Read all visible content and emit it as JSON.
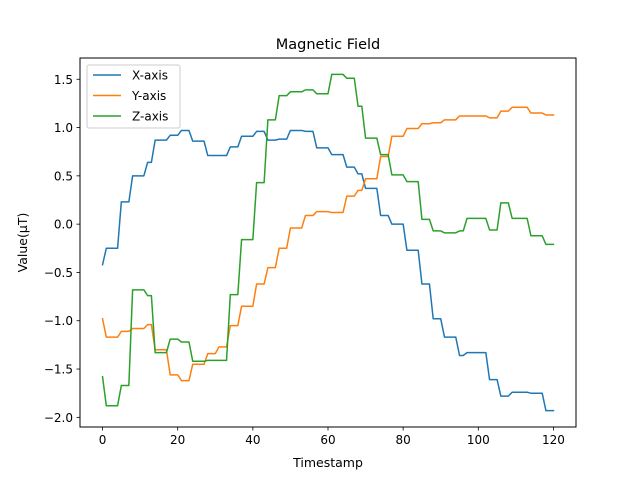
{
  "chart_data": {
    "type": "line",
    "title": "Magnetic Field",
    "xlabel": "Timestamp",
    "ylabel": "Value(µT)",
    "xlim": [
      -6,
      126
    ],
    "ylim": [
      -2.1,
      1.72
    ],
    "xticks": [
      0,
      20,
      40,
      60,
      80,
      100,
      120
    ],
    "yticks": [
      -2.0,
      -1.5,
      -1.0,
      -0.5,
      0.0,
      0.5,
      1.0,
      1.5
    ],
    "ytick_labels": [
      "−2.0",
      "−1.5",
      "−1.0",
      "−0.5",
      "0.0",
      "0.5",
      "1.0",
      "1.5"
    ],
    "grid": false,
    "legend_position": "top-left",
    "series": [
      {
        "name": "X-axis",
        "color": "#1f77b4",
        "x": [
          0,
          1,
          2,
          3,
          4,
          5,
          6,
          7,
          8,
          9,
          10,
          11,
          12,
          13,
          14,
          15,
          16,
          17,
          18,
          19,
          20,
          21,
          22,
          23,
          24,
          25,
          26,
          27,
          28,
          29,
          30,
          31,
          32,
          33,
          34,
          35,
          36,
          37,
          38,
          39,
          40,
          41,
          42,
          43,
          44,
          45,
          46,
          47,
          48,
          49,
          50,
          51,
          52,
          53,
          54,
          55,
          56,
          57,
          58,
          59,
          60,
          61,
          62,
          63,
          64,
          65,
          66,
          67,
          68,
          69,
          70,
          71,
          72,
          73,
          74,
          75,
          76,
          77,
          78,
          79,
          80,
          81,
          82,
          83,
          84,
          85,
          86,
          87,
          88,
          89,
          90,
          91,
          92,
          93,
          94,
          95,
          96,
          97,
          98,
          99,
          100,
          101,
          102,
          103,
          104,
          105,
          106,
          107,
          108,
          109,
          110,
          111,
          112,
          113,
          114,
          115,
          116,
          117,
          118,
          119,
          120
        ],
        "y": [
          -0.42,
          -0.25,
          -0.25,
          -0.25,
          -0.25,
          0.23,
          0.23,
          0.23,
          0.5,
          0.5,
          0.5,
          0.5,
          0.64,
          0.64,
          0.87,
          0.87,
          0.87,
          0.87,
          0.92,
          0.92,
          0.92,
          0.97,
          0.97,
          0.97,
          0.86,
          0.86,
          0.86,
          0.86,
          0.71,
          0.71,
          0.71,
          0.71,
          0.71,
          0.71,
          0.8,
          0.8,
          0.8,
          0.91,
          0.91,
          0.91,
          0.91,
          0.96,
          0.96,
          0.96,
          0.87,
          0.87,
          0.87,
          0.88,
          0.88,
          0.88,
          0.97,
          0.97,
          0.97,
          0.97,
          0.96,
          0.96,
          0.96,
          0.79,
          0.79,
          0.79,
          0.79,
          0.72,
          0.72,
          0.72,
          0.72,
          0.59,
          0.59,
          0.59,
          0.52,
          0.52,
          0.37,
          0.37,
          0.37,
          0.37,
          0.09,
          0.09,
          0.09,
          0.0,
          0.0,
          0.0,
          0.0,
          -0.27,
          -0.27,
          -0.27,
          -0.27,
          -0.62,
          -0.62,
          -0.62,
          -0.98,
          -0.98,
          -0.98,
          -1.17,
          -1.17,
          -1.17,
          -1.17,
          -1.36,
          -1.36,
          -1.33,
          -1.33,
          -1.33,
          -1.33,
          -1.33,
          -1.33,
          -1.61,
          -1.61,
          -1.61,
          -1.78,
          -1.78,
          -1.78,
          -1.74,
          -1.74,
          -1.74,
          -1.74,
          -1.74,
          -1.75,
          -1.75,
          -1.75,
          -1.75,
          -1.93,
          -1.93,
          -1.93
        ]
      },
      {
        "name": "Y-axis",
        "color": "#ff7f0e",
        "x": [
          0,
          1,
          2,
          3,
          4,
          5,
          6,
          7,
          8,
          9,
          10,
          11,
          12,
          13,
          14,
          15,
          16,
          17,
          18,
          19,
          20,
          21,
          22,
          23,
          24,
          25,
          26,
          27,
          28,
          29,
          30,
          31,
          32,
          33,
          34,
          35,
          36,
          37,
          38,
          39,
          40,
          41,
          42,
          43,
          44,
          45,
          46,
          47,
          48,
          49,
          50,
          51,
          52,
          53,
          54,
          55,
          56,
          57,
          58,
          59,
          60,
          61,
          62,
          63,
          64,
          65,
          66,
          67,
          68,
          69,
          70,
          71,
          72,
          73,
          74,
          75,
          76,
          77,
          78,
          79,
          80,
          81,
          82,
          83,
          84,
          85,
          86,
          87,
          88,
          89,
          90,
          91,
          92,
          93,
          94,
          95,
          96,
          97,
          98,
          99,
          100,
          101,
          102,
          103,
          104,
          105,
          106,
          107,
          108,
          109,
          110,
          111,
          112,
          113,
          114,
          115,
          116,
          117,
          118,
          119,
          120
        ],
        "y": [
          -0.98,
          -1.17,
          -1.17,
          -1.17,
          -1.17,
          -1.11,
          -1.11,
          -1.11,
          -1.08,
          -1.08,
          -1.08,
          -1.08,
          -1.04,
          -1.04,
          -1.3,
          -1.3,
          -1.3,
          -1.3,
          -1.56,
          -1.56,
          -1.56,
          -1.62,
          -1.62,
          -1.62,
          -1.45,
          -1.45,
          -1.45,
          -1.45,
          -1.34,
          -1.34,
          -1.34,
          -1.27,
          -1.27,
          -1.27,
          -1.05,
          -1.05,
          -1.05,
          -0.85,
          -0.85,
          -0.85,
          -0.85,
          -0.62,
          -0.62,
          -0.62,
          -0.45,
          -0.45,
          -0.45,
          -0.25,
          -0.25,
          -0.25,
          -0.04,
          -0.04,
          -0.04,
          -0.04,
          0.09,
          0.09,
          0.09,
          0.13,
          0.13,
          0.13,
          0.13,
          0.12,
          0.12,
          0.12,
          0.12,
          0.29,
          0.29,
          0.29,
          0.35,
          0.35,
          0.47,
          0.47,
          0.47,
          0.47,
          0.7,
          0.7,
          0.7,
          0.91,
          0.91,
          0.91,
          0.91,
          0.99,
          0.99,
          0.99,
          0.99,
          1.04,
          1.04,
          1.04,
          1.05,
          1.05,
          1.05,
          1.08,
          1.08,
          1.08,
          1.08,
          1.12,
          1.12,
          1.12,
          1.12,
          1.12,
          1.12,
          1.12,
          1.12,
          1.1,
          1.1,
          1.1,
          1.17,
          1.17,
          1.17,
          1.21,
          1.21,
          1.21,
          1.21,
          1.21,
          1.15,
          1.15,
          1.15,
          1.15,
          1.13,
          1.13,
          1.13
        ]
      },
      {
        "name": "Z-axis",
        "color": "#2ca02c",
        "x": [
          0,
          1,
          2,
          3,
          4,
          5,
          6,
          7,
          8,
          9,
          10,
          11,
          12,
          13,
          14,
          15,
          16,
          17,
          18,
          19,
          20,
          21,
          22,
          23,
          24,
          25,
          26,
          27,
          28,
          29,
          30,
          31,
          32,
          33,
          34,
          35,
          36,
          37,
          38,
          39,
          40,
          41,
          42,
          43,
          44,
          45,
          46,
          47,
          48,
          49,
          50,
          51,
          52,
          53,
          54,
          55,
          56,
          57,
          58,
          59,
          60,
          61,
          62,
          63,
          64,
          65,
          66,
          67,
          68,
          69,
          70,
          71,
          72,
          73,
          74,
          75,
          76,
          77,
          78,
          79,
          80,
          81,
          82,
          83,
          84,
          85,
          86,
          87,
          88,
          89,
          90,
          91,
          92,
          93,
          94,
          95,
          96,
          97,
          98,
          99,
          100,
          101,
          102,
          103,
          104,
          105,
          106,
          107,
          108,
          109,
          110,
          111,
          112,
          113,
          114,
          115,
          116,
          117,
          118,
          119,
          120
        ],
        "y": [
          -1.58,
          -1.88,
          -1.88,
          -1.88,
          -1.88,
          -1.67,
          -1.67,
          -1.67,
          -0.68,
          -0.68,
          -0.68,
          -0.68,
          -0.74,
          -0.74,
          -1.33,
          -1.33,
          -1.33,
          -1.33,
          -1.19,
          -1.19,
          -1.19,
          -1.22,
          -1.22,
          -1.22,
          -1.42,
          -1.42,
          -1.42,
          -1.42,
          -1.41,
          -1.41,
          -1.41,
          -1.41,
          -1.41,
          -1.41,
          -0.73,
          -0.73,
          -0.73,
          -0.16,
          -0.16,
          -0.16,
          -0.16,
          0.43,
          0.43,
          0.43,
          1.08,
          1.08,
          1.08,
          1.33,
          1.33,
          1.33,
          1.37,
          1.37,
          1.37,
          1.37,
          1.39,
          1.39,
          1.39,
          1.35,
          1.35,
          1.35,
          1.35,
          1.55,
          1.55,
          1.55,
          1.55,
          1.51,
          1.51,
          1.51,
          1.22,
          1.22,
          0.89,
          0.89,
          0.89,
          0.89,
          0.72,
          0.72,
          0.72,
          0.51,
          0.51,
          0.51,
          0.51,
          0.44,
          0.44,
          0.44,
          0.44,
          0.05,
          0.05,
          0.05,
          -0.07,
          -0.07,
          -0.07,
          -0.09,
          -0.09,
          -0.09,
          -0.09,
          -0.07,
          -0.07,
          0.06,
          0.06,
          0.06,
          0.06,
          0.06,
          0.06,
          -0.06,
          -0.06,
          -0.06,
          0.22,
          0.22,
          0.22,
          0.06,
          0.06,
          0.06,
          0.06,
          0.06,
          -0.12,
          -0.12,
          -0.12,
          -0.12,
          -0.21,
          -0.21,
          -0.21
        ]
      }
    ]
  }
}
